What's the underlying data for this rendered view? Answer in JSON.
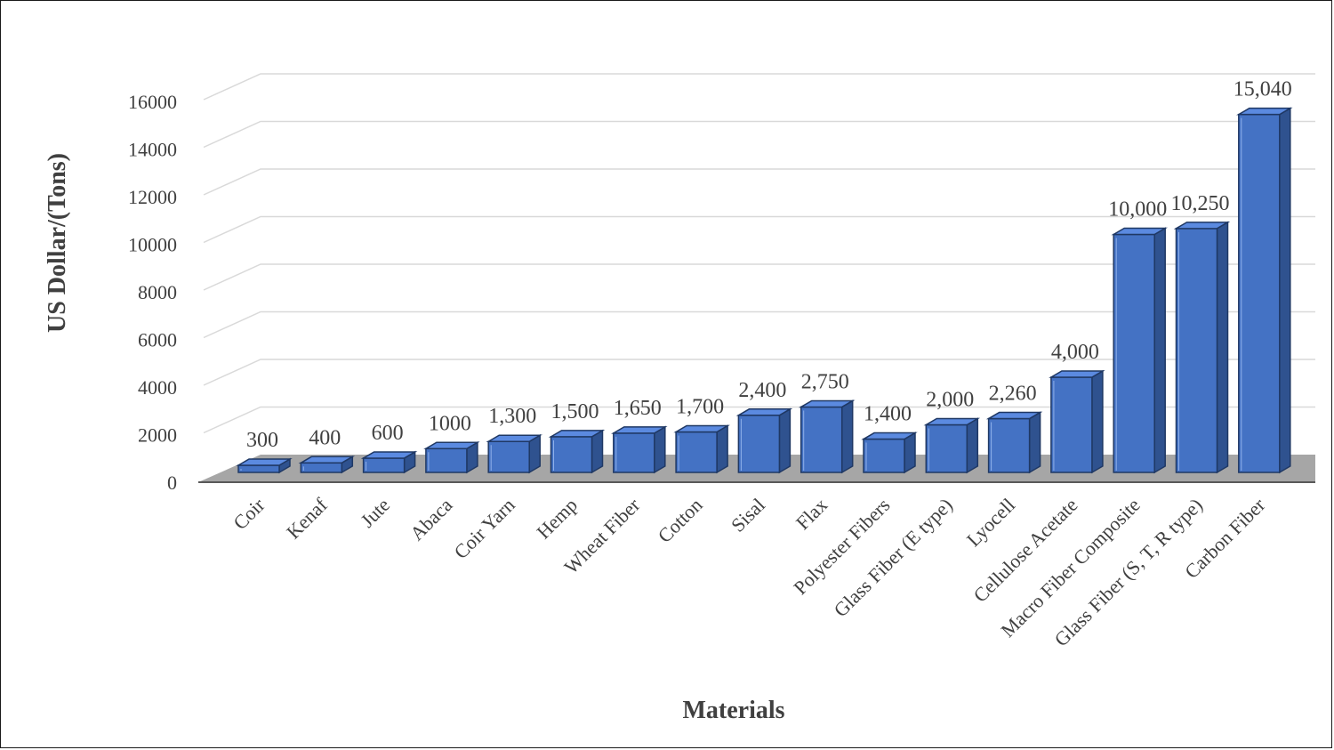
{
  "colors": {
    "bar_front": "#4472c4",
    "bar_side": "#2f528f",
    "bar_top": "#5b8ae0",
    "bar_edge": "#1f3864",
    "floor": "#a6a6a6",
    "gridline": "#d9d9d9",
    "text": "#404040"
  },
  "chart_data": {
    "type": "bar",
    "title": "",
    "xlabel": "Materials",
    "ylabel": "US Dollar/(Tons)",
    "ylim": [
      0,
      16000
    ],
    "yticks": [
      0,
      2000,
      4000,
      6000,
      8000,
      10000,
      12000,
      14000,
      16000
    ],
    "ytick_labels": [
      "0",
      "2000",
      "4000",
      "6000",
      "8000",
      "10000",
      "12000",
      "14000",
      "16000"
    ],
    "grid": true,
    "legend": "none",
    "style": "3d-column",
    "categories": [
      "Coir",
      "Kenaf",
      "Jute",
      "Abaca",
      "Coir Yarn",
      "Hemp",
      "Wheat Fiber",
      "Cotton",
      "Sisal",
      "Flax",
      "Polyester Fibers",
      "Glass Fiber (E type)",
      "Lyocell",
      "Cellulose Acetate",
      "Macro Fiber Composite",
      "Glass Fiber (S, T, R type)",
      "Carbon Fiber"
    ],
    "values": [
      300,
      400,
      600,
      1000,
      1300,
      1500,
      1650,
      1700,
      2400,
      2750,
      1400,
      2000,
      2260,
      4000,
      10000,
      10250,
      15040
    ],
    "data_labels": [
      "300",
      "400",
      "600",
      "1000",
      "1,300",
      "1,500",
      "1,650",
      "1,700",
      "2,400",
      "2,750",
      "1,400",
      "2,000",
      "2,260",
      "4,000",
      "10,000",
      "10,250",
      "15,040"
    ]
  }
}
